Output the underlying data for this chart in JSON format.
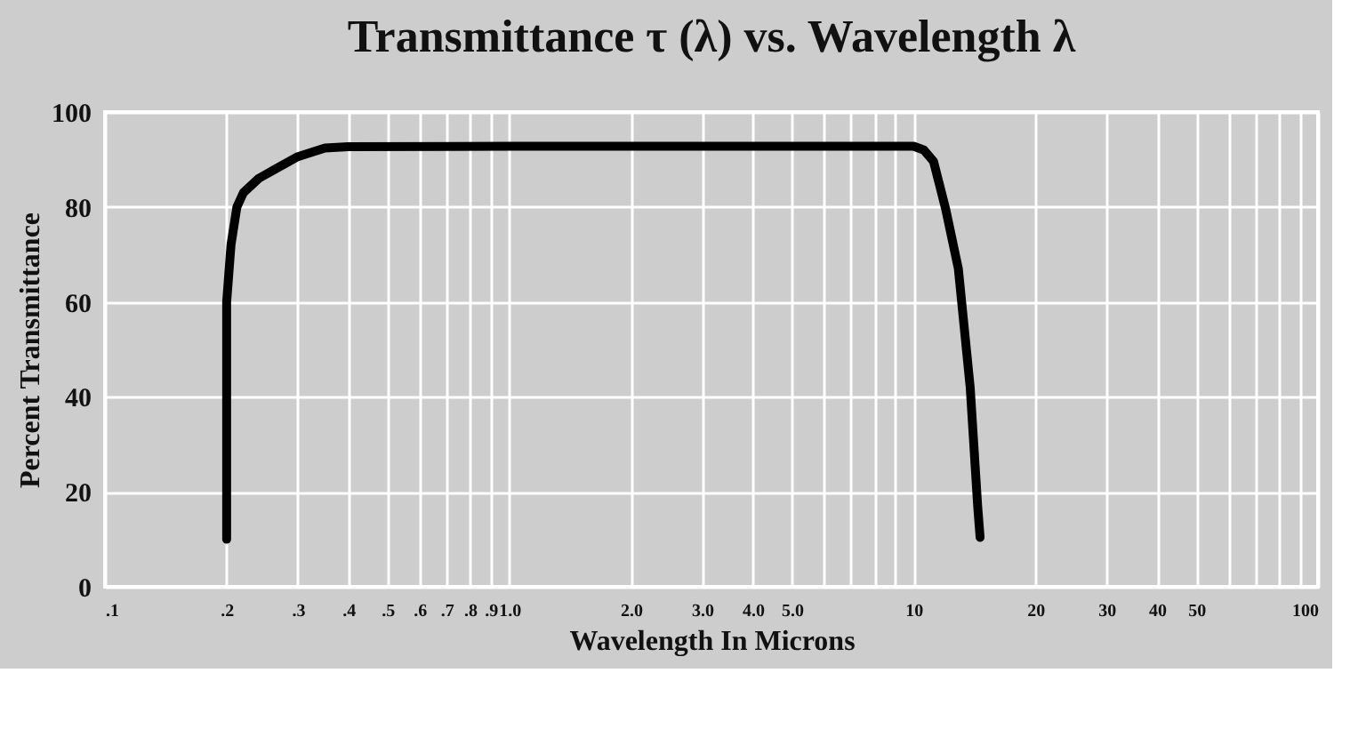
{
  "chart_data": {
    "type": "line",
    "title": "Transmittance τ (λ)  vs. Wavelength λ",
    "xlabel": "Wavelength In Microns",
    "ylabel": "Percent Transmittance",
    "x": [
      0.2,
      0.2,
      0.205,
      0.212,
      0.22,
      0.24,
      0.264,
      0.3,
      0.35,
      0.4,
      1,
      5,
      10,
      10.6,
      11.2,
      12,
      12.9,
      13.8,
      14.4,
      14.6
    ],
    "series": [
      {
        "color": "#000000",
        "values": [
          10,
          60,
          72,
          80,
          83,
          86,
          88,
          90.6,
          92.4,
          92.7,
          92.8,
          92.8,
          92.8,
          92,
          89.6,
          79.6,
          67,
          42,
          17,
          10.4
        ]
      }
    ],
    "xlim": [
      0.1,
      100
    ],
    "ylim": [
      0,
      100
    ],
    "log": "x",
    "xticks": [
      {
        "value": 0.1,
        "label": ".1"
      },
      {
        "value": 0.2,
        "label": ".2"
      },
      {
        "value": 0.3,
        "label": ".3"
      },
      {
        "value": 0.4,
        "label": ".4"
      },
      {
        "value": 0.5,
        "label": ".5"
      },
      {
        "value": 0.6,
        "label": ".6"
      },
      {
        "value": 0.7,
        "label": ".7"
      },
      {
        "value": 0.8,
        "label": ".8"
      },
      {
        "value": 0.9,
        "label": ".9"
      },
      {
        "value": 1,
        "label": "1.0"
      },
      {
        "value": 2,
        "label": "2.0"
      },
      {
        "value": 3,
        "label": "3.0"
      },
      {
        "value": 4,
        "label": "4.0"
      },
      {
        "value": 5,
        "label": "5.0"
      },
      {
        "value": 6,
        "label": null
      },
      {
        "value": 7,
        "label": null
      },
      {
        "value": 8,
        "label": null
      },
      {
        "value": 9,
        "label": null
      },
      10,
      20,
      30,
      40,
      50,
      {
        "value": 60,
        "label": null
      },
      {
        "value": 70,
        "label": null
      },
      {
        "value": 80,
        "label": null
      },
      {
        "value": 90,
        "label": null
      },
      100
    ],
    "yticks": [
      0,
      20,
      40,
      60,
      80,
      100
    ],
    "grid": true,
    "marker": "none",
    "line_style": "solid"
  }
}
